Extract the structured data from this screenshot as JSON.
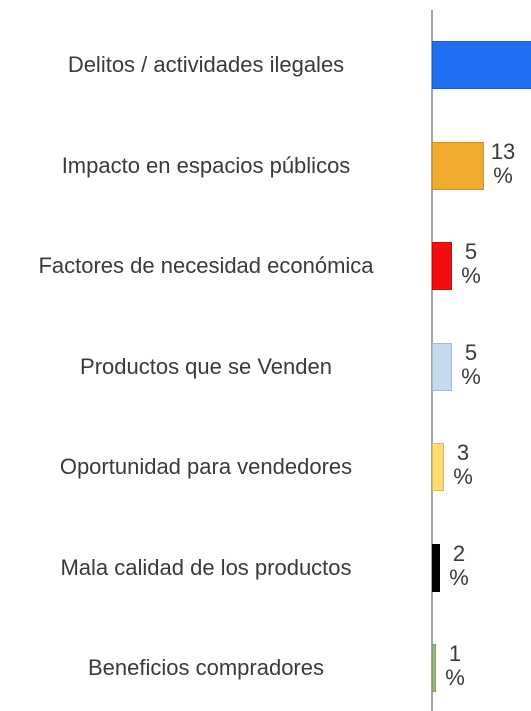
{
  "chart_data": {
    "type": "bar",
    "orientation": "horizontal",
    "categories": [
      "Delitos / actividades ilegales",
      "Impacto en espacios públicos",
      "Factores de necesidad económica",
      "Productos que se Venden",
      "Oportunidad para vendedores",
      "Mala calidad de los productos",
      "Beneficios compradores"
    ],
    "values": [
      45,
      13,
      5,
      5,
      3,
      2,
      1
    ],
    "value_labels": [
      null,
      "13 %",
      "5 %",
      "5 %",
      "3 %",
      "2 %",
      "1 %"
    ],
    "colors": [
      "#1f6ff0",
      "#f0ab2e",
      "#f20e0e",
      "#c5d9ef",
      "#fcdc73",
      "#000000",
      "#9bbb7e"
    ]
  }
}
